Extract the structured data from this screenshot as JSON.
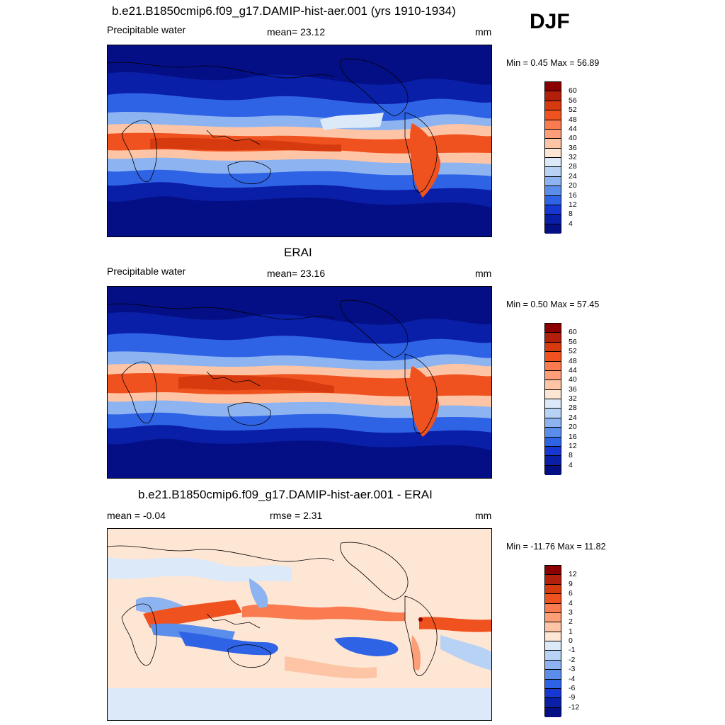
{
  "season": "DJF",
  "panels": [
    {
      "title": "b.e21.B1850cmip6.f09_g17.DAMIP-hist-aer.001 (yrs 1910-1934)",
      "left_label": "Precipitable water",
      "center_label": "mean=  23.12",
      "right_label": "mm",
      "minmax": "Min =   0.45 Max =  56.89"
    },
    {
      "title": "ERAI",
      "left_label": "Precipitable water",
      "center_label": "mean=  23.16",
      "right_label": "mm",
      "minmax": "Min =   0.50 Max =  57.45"
    },
    {
      "title": "b.e21.B1850cmip6.f09_g17.DAMIP-hist-aer.001 - ERAI",
      "left_label": "mean =  -0.04",
      "center_label": "rmse =   2.31",
      "right_label": "mm",
      "minmax": "Min = -11.76 Max =  11.82"
    }
  ],
  "colorbars": {
    "absolute": {
      "ticks": [
        "60",
        "56",
        "52",
        "48",
        "44",
        "40",
        "36",
        "32",
        "28",
        "24",
        "20",
        "16",
        "12",
        "8",
        "4"
      ],
      "colors": [
        "#8b0000",
        "#b2200c",
        "#d63a0e",
        "#f0521f",
        "#f97b4f",
        "#fc9e78",
        "#fdc5a6",
        "#fee6d4",
        "#dce9f9",
        "#b7d2f5",
        "#8db4f0",
        "#5b8eea",
        "#2f63e6",
        "#1737d2",
        "#0a1fa8",
        "#050f85"
      ]
    },
    "difference": {
      "ticks": [
        "12",
        "9",
        "6",
        "4",
        "3",
        "2",
        "1",
        "0",
        "-1",
        "-2",
        "-3",
        "-4",
        "-6",
        "-9",
        "-12"
      ],
      "colors": [
        "#8b0000",
        "#b2200c",
        "#d63a0e",
        "#f0521f",
        "#f97b4f",
        "#fc9e78",
        "#fdc5a6",
        "#fee6d4",
        "#dce9f9",
        "#b7d2f5",
        "#8db4f0",
        "#5b8eea",
        "#2f63e6",
        "#1737d2",
        "#0a1fa8",
        "#050f85"
      ]
    }
  }
}
